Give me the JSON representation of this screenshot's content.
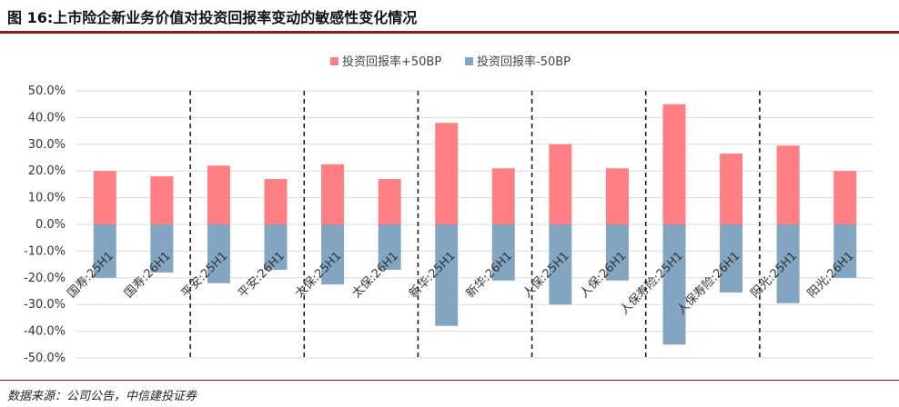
{
  "page": {
    "title": "图 16:上市险企新业务价值对投资回报率变动的敏感性变化情况",
    "source": "数据来源：公司公告，中信建投证券"
  },
  "chart_data": {
    "type": "bar",
    "title": "",
    "xlabel": "",
    "ylabel": "",
    "ylim": [
      -0.5,
      0.5
    ],
    "ytick_step": 0.1,
    "yformat": "percent1",
    "grid": true,
    "legend_position": "top",
    "categories": [
      "国寿:25H1",
      "国寿:26H1",
      "平安:25H1",
      "平安:26H1",
      "太保:25H1",
      "太保:26H1",
      "新华:25H1",
      "新华:26H1",
      "人保:25H1",
      "人保:26H1",
      "人保寿险:25H1",
      "人保寿险:26H1",
      "阳光:25H1",
      "阳光:26H1"
    ],
    "group_separators_after": [
      1,
      3,
      5,
      7,
      9,
      11
    ],
    "series": [
      {
        "name": "投资回报率+50BP",
        "color": "#ff7f83",
        "values": [
          0.2,
          0.18,
          0.22,
          0.17,
          0.225,
          0.17,
          0.38,
          0.21,
          0.3,
          0.21,
          0.45,
          0.265,
          0.295,
          0.2
        ]
      },
      {
        "name": "投资回报率-50BP",
        "color": "#82a6c2",
        "values": [
          -0.2,
          -0.18,
          -0.22,
          -0.17,
          -0.225,
          -0.17,
          -0.38,
          -0.21,
          -0.3,
          -0.21,
          -0.45,
          -0.255,
          -0.295,
          -0.2
        ]
      }
    ]
  }
}
